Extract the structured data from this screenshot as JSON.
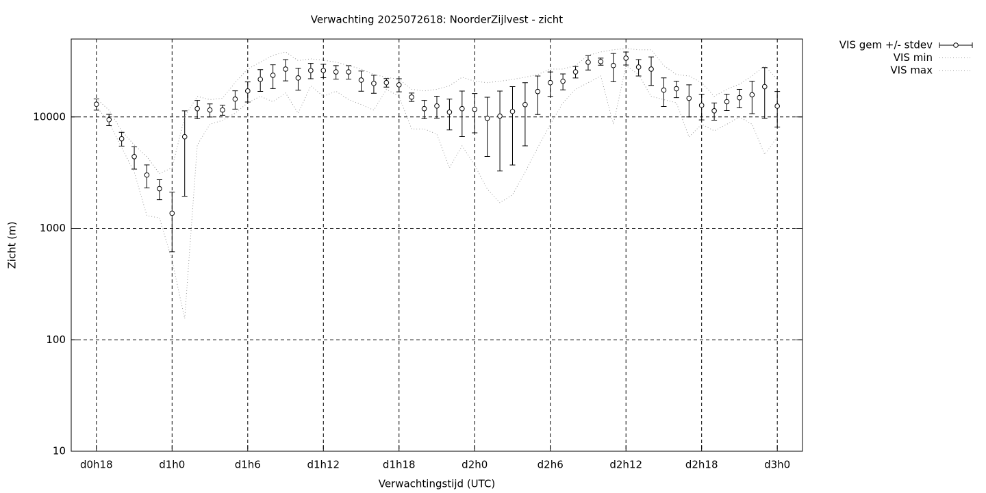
{
  "chart_data": {
    "type": "errorbar",
    "title": "Verwachting 2025072618: NoorderZijlvest - zicht",
    "x_label": "Verwachtingstijd (UTC)",
    "y_label": "Zicht (m)",
    "log_y": true,
    "grid": true,
    "legend": "top-right-outside",
    "xlim": [
      16,
      74
    ],
    "ylim": [
      10,
      50000
    ],
    "xticks": [
      {
        "value": 18,
        "label": "d0h18"
      },
      {
        "value": 24,
        "label": "d1h0"
      },
      {
        "value": 30,
        "label": "d1h6"
      },
      {
        "value": 36,
        "label": "d1h12"
      },
      {
        "value": 42,
        "label": "d1h18"
      },
      {
        "value": 48,
        "label": "d2h0"
      },
      {
        "value": 54,
        "label": "d2h6"
      },
      {
        "value": 60,
        "label": "d2h12"
      },
      {
        "value": 66,
        "label": "d2h18"
      },
      {
        "value": 72,
        "label": "d3h0"
      }
    ],
    "yticks": [
      10,
      100,
      1000,
      10000
    ],
    "x": [
      18,
      19,
      20,
      21,
      22,
      23,
      24,
      25,
      26,
      27,
      28,
      29,
      30,
      31,
      32,
      33,
      34,
      35,
      36,
      37,
      38,
      39,
      40,
      41,
      42,
      43,
      44,
      45,
      46,
      47,
      48,
      49,
      50,
      51,
      52,
      53,
      54,
      55,
      56,
      57,
      58,
      59,
      60,
      61,
      62,
      63,
      64,
      65,
      66,
      67,
      68,
      69,
      70,
      71,
      72
    ],
    "series": [
      {
        "name": "VIS gem +/- stdev",
        "color": "#000000",
        "style": "errorbars",
        "values": [
          13000,
          9450,
          6370,
          4400,
          3010,
          2270,
          1366,
          6640,
          11860,
          11540,
          11540,
          14450,
          17100,
          21730,
          23650,
          26860,
          22370,
          26100,
          26100,
          25350,
          25350,
          21400,
          19980,
          20300,
          19400,
          15070,
          11860,
          12540,
          11040,
          11860,
          11700,
          9720,
          10170,
          11200,
          12900,
          16900,
          20300,
          20900,
          25350,
          30950,
          31400,
          28900,
          33700,
          28000,
          26860,
          17400,
          17900,
          14700,
          12700,
          11350,
          13700,
          14870,
          15800,
          18700,
          12500
        ],
        "errors": [
          1500,
          1100,
          900,
          1000,
          700,
          460,
          750,
          4700,
          2200,
          1550,
          1200,
          2700,
          3500,
          4800,
          5700,
          5800,
          5000,
          4100,
          3600,
          3500,
          3500,
          4400,
          3700,
          1800,
          2600,
          1300,
          2200,
          2800,
          3400,
          5200,
          4500,
          5300,
          6900,
          7500,
          7400,
          6400,
          5000,
          3400,
          3000,
          4600,
          2300,
          8200,
          4500,
          4700,
          7700,
          5000,
          3000,
          4700,
          3300,
          2000,
          2300,
          2800,
          5100,
          9000,
          4400
        ]
      },
      {
        "name": "VIS min",
        "color": "#999999",
        "style": "dots",
        "values": [
          12400,
          8900,
          5300,
          3200,
          1300,
          1240,
          515,
          155,
          5600,
          8600,
          9300,
          10800,
          13400,
          15300,
          13700,
          16400,
          10800,
          19000,
          15300,
          17000,
          14300,
          12900,
          11500,
          17700,
          15300,
          7800,
          7800,
          7000,
          3500,
          5500,
          3700,
          2250,
          1700,
          2000,
          3200,
          5300,
          8600,
          13400,
          17700,
          20300,
          23300,
          8600,
          28900,
          24000,
          15300,
          14300,
          13400,
          6600,
          8600,
          7500,
          8600,
          10000,
          8600,
          4600,
          6600
        ]
      },
      {
        "name": "VIS max",
        "color": "#999999",
        "style": "dots",
        "values": [
          14600,
          11500,
          7500,
          5600,
          4400,
          3100,
          3500,
          10000,
          15300,
          14300,
          14700,
          20300,
          26900,
          31000,
          35700,
          38300,
          32000,
          33200,
          32300,
          31000,
          28900,
          26900,
          24000,
          22700,
          21700,
          17700,
          17100,
          17700,
          19000,
          22700,
          20900,
          20300,
          20900,
          21700,
          22700,
          24000,
          26900,
          26900,
          28900,
          35700,
          38300,
          40000,
          41200,
          40000,
          40000,
          28900,
          24000,
          23300,
          20300,
          15300,
          17700,
          19700,
          23300,
          28900,
          21700
        ]
      }
    ]
  }
}
